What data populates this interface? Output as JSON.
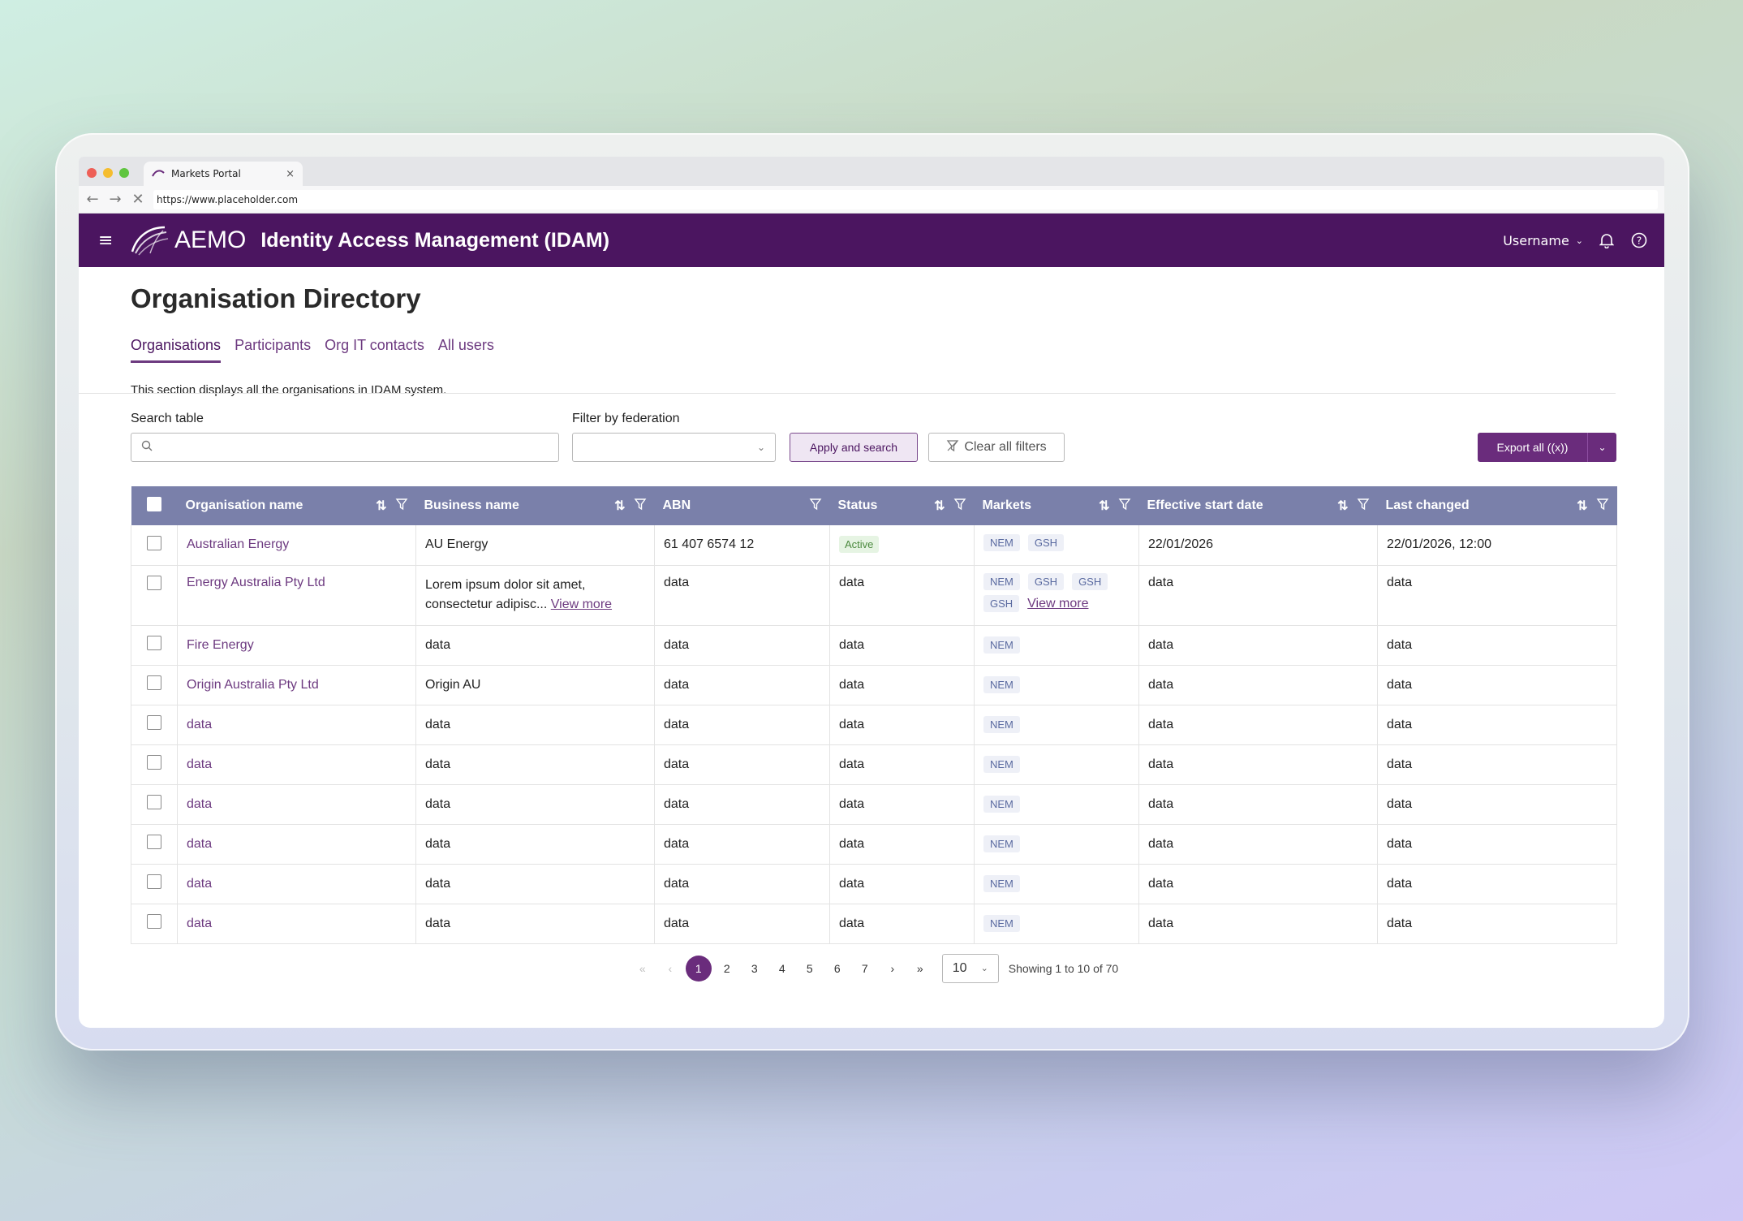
{
  "browser": {
    "tab_title": "Markets Portal",
    "url": "https://www.placeholder.com"
  },
  "header": {
    "logo_text": "AEMO",
    "app_title": "Identity Access Management (IDAM)",
    "username": "Username"
  },
  "page": {
    "title": "Organisation Directory",
    "tabs": [
      "Organisations",
      "Participants",
      "Org IT contacts",
      "All users"
    ],
    "description": "This section displays all the organisations in IDAM system."
  },
  "filters": {
    "search_label": "Search table",
    "federation_label": "Filter by federation",
    "apply_label": "Apply and search",
    "clear_label": "Clear all filters",
    "export_label": "Export all ((x))"
  },
  "table": {
    "columns": [
      "Organisation name",
      "Business name",
      "ABN",
      "Status",
      "Markets",
      "Effective start date",
      "Last changed"
    ],
    "rows": [
      {
        "org": "Australian Energy",
        "business": "AU Energy",
        "abn": "61 407 6574 12",
        "status": "Active",
        "markets": [
          "NEM",
          "GSH"
        ],
        "start": "22/01/2026",
        "changed": "22/01/2026, 12:00"
      },
      {
        "org": "Energy Australia Pty Ltd",
        "business_line1": "Lorem ipsum dolor sit amet,",
        "business_line2": "consectetur adipisc...",
        "business_more": "View more",
        "abn": "data",
        "status": "data",
        "markets": [
          "NEM",
          "GSH",
          "GSH",
          "GSH"
        ],
        "markets_more": "View more",
        "start": "data",
        "changed": "data"
      },
      {
        "org": "Fire Energy",
        "business": "data",
        "abn": "data",
        "status": "data",
        "markets": [
          "NEM"
        ],
        "start": "data",
        "changed": "data"
      },
      {
        "org": "Origin Australia Pty Ltd",
        "business": "Origin AU",
        "abn": "data",
        "status": "data",
        "markets": [
          "NEM"
        ],
        "start": "data",
        "changed": "data"
      },
      {
        "org": "data",
        "business": "data",
        "abn": "data",
        "status": "data",
        "markets": [
          "NEM"
        ],
        "start": "data",
        "changed": "data"
      },
      {
        "org": "data",
        "business": "data",
        "abn": "data",
        "status": "data",
        "markets": [
          "NEM"
        ],
        "start": "data",
        "changed": "data"
      },
      {
        "org": "data",
        "business": "data",
        "abn": "data",
        "status": "data",
        "markets": [
          "NEM"
        ],
        "start": "data",
        "changed": "data"
      },
      {
        "org": "data",
        "business": "data",
        "abn": "data",
        "status": "data",
        "markets": [
          "NEM"
        ],
        "start": "data",
        "changed": "data"
      },
      {
        "org": "data",
        "business": "data",
        "abn": "data",
        "status": "data",
        "markets": [
          "NEM"
        ],
        "start": "data",
        "changed": "data"
      },
      {
        "org": "data",
        "business": "data",
        "abn": "data",
        "status": "data",
        "markets": [
          "NEM"
        ],
        "start": "data",
        "changed": "data"
      }
    ]
  },
  "pagination": {
    "first": "«",
    "prev": "‹",
    "pages": [
      "1",
      "2",
      "3",
      "4",
      "5",
      "6",
      "7"
    ],
    "current": "1",
    "next": "›",
    "last": "»",
    "page_size": "10",
    "showing": "Showing 1 to 10 of 70"
  },
  "colors": {
    "brand": "#4b1560",
    "accent": "#6a2c7c",
    "table_header": "#7a80aa"
  }
}
